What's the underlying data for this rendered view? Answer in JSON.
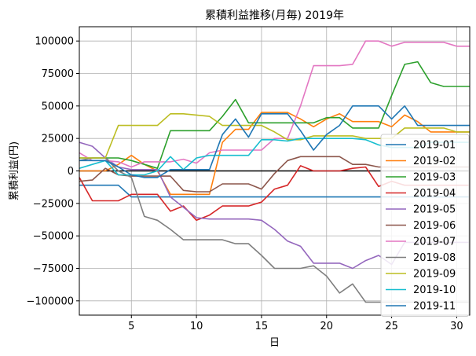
{
  "chart_data": {
    "type": "line",
    "title": "累積利益推移(月毎)  2019年",
    "xlabel": "日",
    "ylabel": "累積利益(円)",
    "xlim": [
      1,
      31
    ],
    "ylim": [
      -111000,
      111000
    ],
    "xticks": [
      5,
      10,
      15,
      20,
      25,
      30
    ],
    "yticks": [
      -100000,
      -75000,
      -50000,
      -25000,
      0,
      25000,
      50000,
      75000,
      100000
    ],
    "ytick_labels": [
      "−100000",
      "−75000",
      "−50000",
      "−25000",
      "0",
      "25000",
      "50000",
      "75000",
      "100000"
    ],
    "grid": true,
    "zero_line": true,
    "legend_position": "lower right",
    "x": [
      1,
      2,
      3,
      4,
      5,
      6,
      7,
      8,
      9,
      10,
      11,
      12,
      13,
      14,
      15,
      16,
      17,
      18,
      19,
      20,
      21,
      22,
      23,
      24,
      25,
      26,
      27,
      28,
      29,
      30,
      31
    ],
    "series": [
      {
        "name": "2019-01",
        "color": "#1f77b4",
        "values": [
          -11000,
          -11000,
          -11000,
          -11000,
          -20000,
          -20000,
          -20000,
          -20000,
          -20000,
          -20000,
          -20000,
          -20000,
          -20000,
          -20000,
          -20000,
          -20000,
          -20000,
          -20000,
          -20000,
          -20000,
          -20000,
          -20000,
          -20000,
          -20000,
          -20000,
          -20000,
          -20000,
          -20000,
          -20000,
          -20000,
          -20000
        ]
      },
      {
        "name": "2019-02",
        "color": "#ff7f0e",
        "values": [
          0,
          0,
          0,
          5000,
          12000,
          5000,
          0,
          -18000,
          -18000,
          -18000,
          -18000,
          22000,
          32000,
          32000,
          45000,
          45000,
          45000,
          40000,
          34000,
          40000,
          44000,
          38000,
          38000,
          38000,
          34000,
          43000,
          38000,
          30000,
          30000,
          30000,
          30000
        ]
      },
      {
        "name": "2019-03",
        "color": "#2ca02c",
        "values": [
          10000,
          10000,
          10000,
          10000,
          8000,
          5000,
          2000,
          31000,
          31000,
          31000,
          31000,
          42000,
          55000,
          37000,
          37000,
          37000,
          37000,
          37000,
          37000,
          41000,
          41000,
          33000,
          33000,
          33000,
          58000,
          82000,
          84000,
          68000,
          65000,
          65000,
          65000
        ]
      },
      {
        "name": "2019-04",
        "color": "#d62728",
        "values": [
          -5000,
          -23000,
          -23000,
          -23000,
          -18000,
          -18000,
          -18000,
          -31000,
          -27000,
          -38000,
          -34000,
          -27000,
          -27000,
          -27000,
          -24000,
          -14000,
          -11000,
          4000,
          0,
          0,
          0,
          2000,
          3000,
          -12000,
          -8000,
          -11000,
          -11000,
          -11000,
          -11000,
          -11000,
          -11000
        ]
      },
      {
        "name": "2019-05",
        "color": "#9467bd",
        "values": [
          22000,
          19000,
          10000,
          3000,
          1000,
          1000,
          1000,
          -20000,
          -28000,
          -36000,
          -37000,
          -37000,
          -37000,
          -37000,
          -38000,
          -45000,
          -54000,
          -58000,
          -71000,
          -71000,
          -71000,
          -75000,
          -69000,
          -65000,
          -72000,
          -55000,
          -55000,
          -55000,
          -55000,
          -55000,
          -55000
        ]
      },
      {
        "name": "2019-06",
        "color": "#8c564b",
        "values": [
          -8000,
          -7000,
          2000,
          -3000,
          -4000,
          -4000,
          -4000,
          -4000,
          -15000,
          -16000,
          -16000,
          -10000,
          -10000,
          -10000,
          -14000,
          -2000,
          8000,
          11000,
          11000,
          11000,
          11000,
          5000,
          5000,
          3000,
          3000,
          3000,
          3000,
          3000,
          3000,
          3000,
          3000
        ]
      },
      {
        "name": "2019-07",
        "color": "#e377c2",
        "values": [
          14000,
          8000,
          8000,
          7000,
          3000,
          7000,
          7000,
          7000,
          9000,
          6000,
          14000,
          16000,
          16000,
          16000,
          16000,
          25000,
          25000,
          50000,
          81000,
          81000,
          81000,
          82000,
          100000,
          100000,
          96000,
          99000,
          99000,
          99000,
          99000,
          96000,
          96000
        ]
      },
      {
        "name": "2019-08",
        "color": "#7f7f7f",
        "values": [
          8000,
          10000,
          10000,
          0,
          -5000,
          -35000,
          -38000,
          -45000,
          -53000,
          -53000,
          -53000,
          -53000,
          -56000,
          -56000,
          -65000,
          -75000,
          -75000,
          -75000,
          -73000,
          -81000,
          -94000,
          -87000,
          -101000,
          -101000,
          -101000,
          -101000,
          -101000,
          -101000,
          -101000,
          -101000,
          -101000
        ]
      },
      {
        "name": "2019-09",
        "color": "#bcbd22",
        "values": [
          10000,
          10000,
          10000,
          35000,
          35000,
          35000,
          35000,
          44000,
          44000,
          43000,
          42000,
          35000,
          35000,
          35000,
          35000,
          30000,
          24000,
          24000,
          27000,
          27000,
          27000,
          27000,
          25000,
          25000,
          25000,
          33000,
          33000,
          33000,
          33000,
          30000,
          30000
        ]
      },
      {
        "name": "2019-10",
        "color": "#17becf",
        "values": [
          2000,
          5000,
          8000,
          -3000,
          -3000,
          -3000,
          0,
          11000,
          1000,
          10000,
          12000,
          12000,
          12000,
          12000,
          24000,
          24000,
          23000,
          25000,
          25000,
          25000,
          25000,
          25000,
          24000,
          20000,
          18000,
          18000,
          18000,
          22000,
          22000,
          22000,
          22000
        ]
      },
      {
        "name": "2019-11",
        "color": "#1f77b4",
        "values": [
          8000,
          8000,
          8000,
          3000,
          -3000,
          -5000,
          -5000,
          1000,
          1000,
          1000,
          1000,
          28000,
          40000,
          26000,
          44000,
          44000,
          44000,
          31000,
          16000,
          28000,
          35000,
          50000,
          50000,
          50000,
          40000,
          50000,
          35000,
          35000,
          35000,
          35000,
          35000
        ]
      }
    ]
  }
}
